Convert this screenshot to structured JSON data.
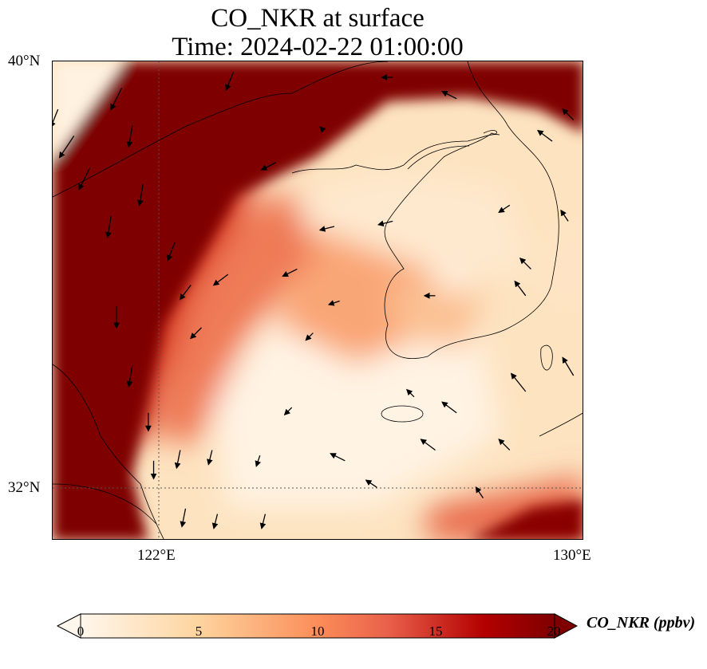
{
  "title": {
    "line1": "CO_NKR at surface",
    "line2": "Time: 2024-02-22 01:00:00"
  },
  "axes": {
    "lat_ticks": [
      "40°N",
      "32°N"
    ],
    "lon_ticks": [
      "122°E",
      "130°E"
    ],
    "extent": {
      "lon": [
        120,
        130
      ],
      "lat": [
        31,
        40
      ]
    }
  },
  "colorbar": {
    "label": "CO_NKR (ppbv)",
    "ticks": [
      "0",
      "5",
      "10",
      "15",
      "20"
    ],
    "range": [
      0,
      20
    ],
    "extend": "both",
    "colors": [
      "#fff7ec",
      "#fdd49e",
      "#fc8d59",
      "#d7301f",
      "#b30000",
      "#7f0000"
    ]
  },
  "chart_data": {
    "type": "heatmap",
    "variable": "CO_NKR",
    "units": "ppbv",
    "wind_vectors": [
      [
        120.1,
        39.1,
        0.2,
        0.5
      ],
      [
        120.4,
        38.6,
        0.4,
        0.6
      ],
      [
        120.7,
        38.0,
        0.3,
        0.6
      ],
      [
        121.3,
        39.5,
        0.3,
        0.6
      ],
      [
        121.5,
        38.8,
        0.1,
        0.6
      ],
      [
        121.7,
        37.7,
        0.1,
        0.6
      ],
      [
        122.3,
        36.6,
        0.2,
        0.5
      ],
      [
        121.1,
        37.1,
        0.1,
        0.6
      ],
      [
        122.6,
        35.8,
        0.3,
        0.4
      ],
      [
        123.3,
        36.0,
        0.4,
        0.3
      ],
      [
        122.8,
        35.0,
        0.3,
        0.3
      ],
      [
        121.2,
        35.4,
        0.0,
        0.6
      ],
      [
        121.5,
        34.3,
        0.1,
        0.6
      ],
      [
        121.8,
        33.4,
        0.0,
        0.5
      ],
      [
        122.4,
        32.7,
        0.1,
        0.5
      ],
      [
        121.9,
        32.5,
        0.0,
        0.5
      ],
      [
        123.0,
        32.7,
        0.1,
        0.4
      ],
      [
        122.5,
        31.6,
        0.1,
        0.5
      ],
      [
        123.1,
        31.5,
        0.1,
        0.4
      ],
      [
        124.0,
        31.5,
        0.1,
        0.4
      ],
      [
        123.9,
        32.6,
        0.1,
        0.3
      ],
      [
        124.5,
        33.5,
        0.2,
        0.2
      ],
      [
        124.9,
        34.9,
        0.2,
        0.2
      ],
      [
        124.6,
        36.1,
        0.4,
        0.2
      ],
      [
        125.3,
        36.9,
        0.4,
        0.1
      ],
      [
        124.2,
        38.1,
        0.4,
        0.2
      ],
      [
        125.4,
        35.5,
        0.3,
        0.1
      ],
      [
        126.4,
        37.0,
        0.4,
        0.1
      ],
      [
        127.2,
        35.6,
        0.3,
        0.0
      ],
      [
        126.8,
        33.7,
        0.2,
        -0.2
      ],
      [
        126.1,
        32.0,
        0.3,
        -0.2
      ],
      [
        125.5,
        32.5,
        0.4,
        -0.2
      ],
      [
        127.6,
        33.4,
        0.4,
        -0.3
      ],
      [
        127.2,
        32.7,
        0.4,
        -0.3
      ],
      [
        128.1,
        31.8,
        0.2,
        -0.3
      ],
      [
        128.6,
        32.7,
        0.3,
        -0.3
      ],
      [
        128.9,
        33.8,
        0.4,
        -0.5
      ],
      [
        129.8,
        34.1,
        0.3,
        -0.5
      ],
      [
        128.9,
        35.6,
        0.3,
        -0.4
      ],
      [
        128.6,
        37.3,
        0.3,
        0.2
      ],
      [
        129.0,
        36.1,
        0.3,
        -0.3
      ],
      [
        129.7,
        37.0,
        0.2,
        -0.3
      ],
      [
        129.4,
        38.5,
        0.4,
        -0.3
      ],
      [
        129.8,
        38.9,
        0.3,
        -0.3
      ],
      [
        127.6,
        39.3,
        0.4,
        -0.2
      ],
      [
        126.4,
        39.7,
        0.3,
        0.0
      ],
      [
        125.1,
        38.7,
        0.1,
        -0.1
      ],
      [
        123.4,
        39.8,
        0.2,
        0.5
      ]
    ]
  }
}
